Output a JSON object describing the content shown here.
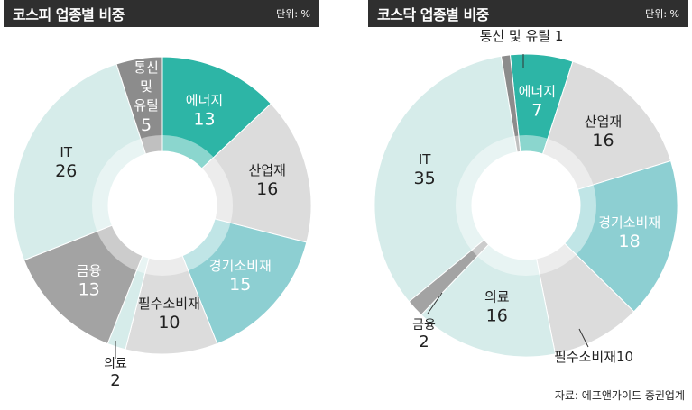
{
  "colors": {
    "teal": "#2db5a6",
    "light_teal": "#8dcfd2",
    "pale_teal": "#d6ecea",
    "light_gray": "#dcdcdc",
    "mid_gray": "#a3a3a3",
    "dark_gray": "#8c8c8c",
    "inner_ring": "#ededed"
  },
  "footer": {
    "source": "자료: 에프앤가이드 증권업계"
  },
  "chart_data": [
    {
      "type": "pie",
      "title": "코스피 업종별 비중",
      "unit_label": "단위: %",
      "slices": [
        {
          "label": "에너지",
          "value": 13,
          "color": "#2db5a6",
          "text_color": "#ffffff"
        },
        {
          "label": "산업재",
          "value": 16,
          "color": "#dcdcdc",
          "text_color": "#222222"
        },
        {
          "label": "경기소비재",
          "value": 15,
          "color": "#8dcfd2",
          "text_color": "#ffffff"
        },
        {
          "label": "필수소비재",
          "value": 10,
          "color": "#dcdcdc",
          "text_color": "#222222"
        },
        {
          "label": "의료",
          "value": 2,
          "color": "#d6ecea",
          "text_color": "#222222"
        },
        {
          "label": "금융",
          "value": 13,
          "color": "#a3a3a3",
          "text_color": "#ffffff"
        },
        {
          "label": "IT",
          "value": 26,
          "color": "#d6ecea",
          "text_color": "#222222"
        },
        {
          "label": "통신 및 유틸",
          "value": 5,
          "color": "#8c8c8c",
          "text_color": "#ffffff"
        }
      ]
    },
    {
      "type": "pie",
      "title": "코스닥 업종별 비중",
      "unit_label": "단위: %",
      "slices": [
        {
          "label": "에너지",
          "value": 7,
          "color": "#2db5a6",
          "text_color": "#ffffff"
        },
        {
          "label": "산업재",
          "value": 16,
          "color": "#dcdcdc",
          "text_color": "#222222"
        },
        {
          "label": "경기소비재",
          "value": 18,
          "color": "#8dcfd2",
          "text_color": "#ffffff"
        },
        {
          "label": "필수소비재",
          "value": 10,
          "color": "#dcdcdc",
          "text_color": "#222222"
        },
        {
          "label": "의료",
          "value": 16,
          "color": "#d6ecea",
          "text_color": "#222222"
        },
        {
          "label": "금융",
          "value": 2,
          "color": "#a3a3a3",
          "text_color": "#222222"
        },
        {
          "label": "IT",
          "value": 35,
          "color": "#d6ecea",
          "text_color": "#222222"
        },
        {
          "label": "통신 및 유틸",
          "value": 1,
          "color": "#8c8c8c",
          "text_color": "#222222"
        }
      ]
    }
  ]
}
